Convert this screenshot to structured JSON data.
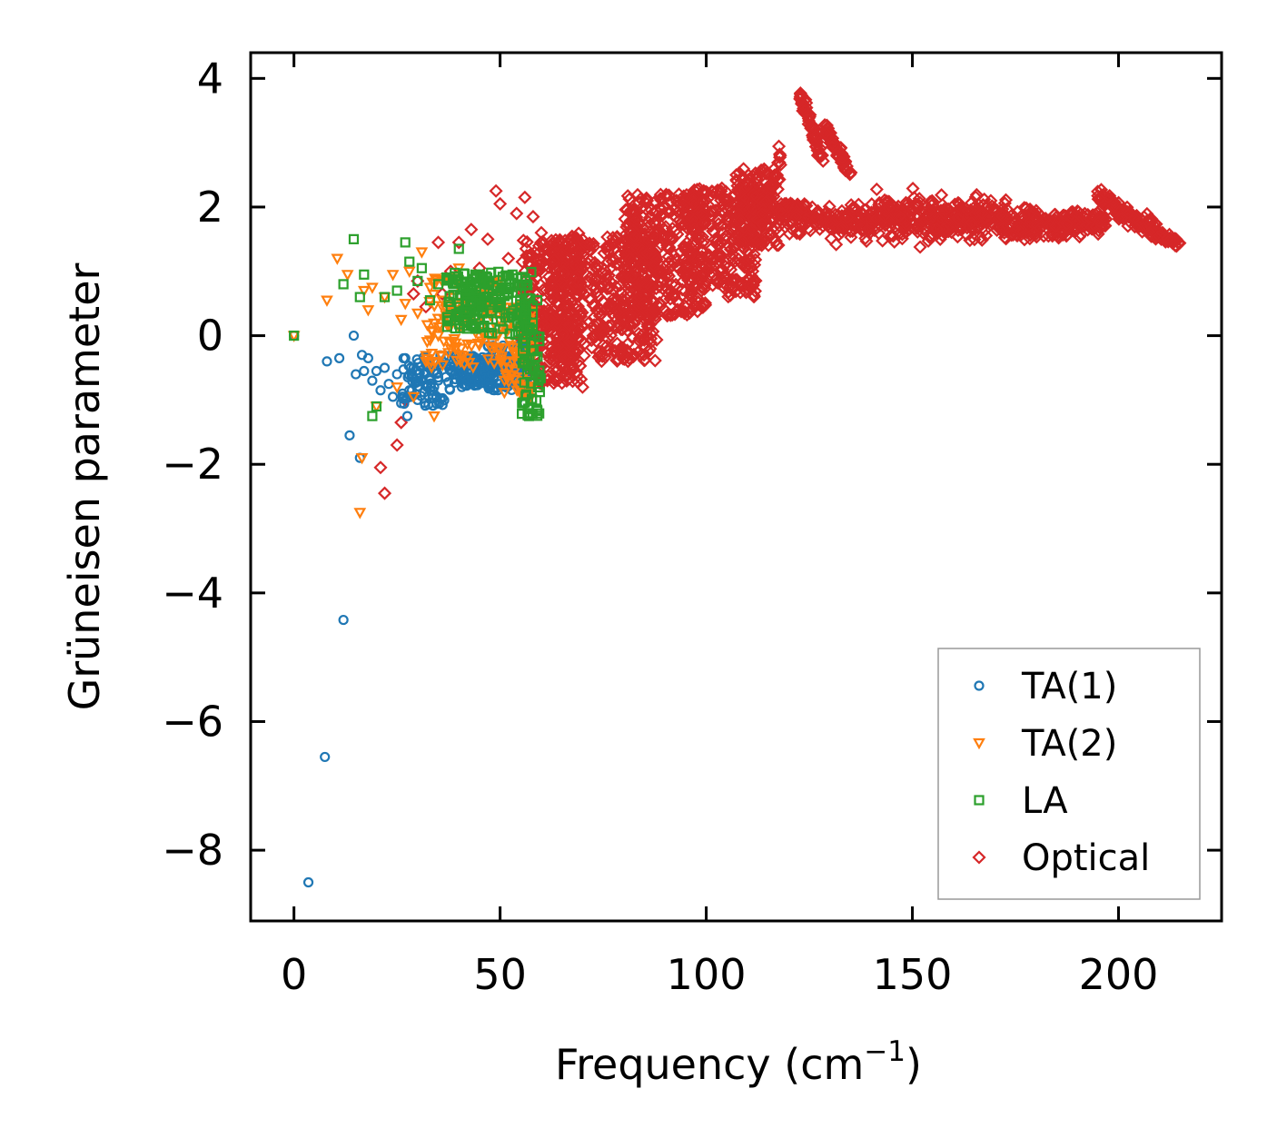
{
  "chart_data": {
    "type": "scatter",
    "title": "",
    "xlabel": "Frequency (cm",
    "xlabel_sup": "−1",
    "xlabel_tail": ")",
    "ylabel": "Grüneisen parameter",
    "xlim": [
      -10.5,
      225
    ],
    "ylim": [
      -9.1,
      4.4
    ],
    "xticks": [
      0,
      50,
      100,
      150,
      200
    ],
    "xtick_labels": [
      "0",
      "50",
      "100",
      "150",
      "200"
    ],
    "yticks": [
      4,
      2,
      0,
      -2,
      -4,
      -6,
      -8
    ],
    "ytick_labels": [
      "4",
      "2",
      "0",
      "−2",
      "−4",
      "−6",
      "−8"
    ],
    "grid": false,
    "legend_position": "bottom-right",
    "series": [
      {
        "name": "TA(1)",
        "marker": "circle",
        "color": "#1f77b4",
        "points": [
          [
            0,
            0
          ],
          [
            3.5,
            -8.5
          ],
          [
            7.5,
            -6.55
          ],
          [
            12,
            -4.42
          ],
          [
            8,
            -0.4
          ],
          [
            11,
            -0.35
          ],
          [
            13.5,
            -1.55
          ],
          [
            14.5,
            0
          ],
          [
            15,
            -0.6
          ],
          [
            16,
            -1.9
          ],
          [
            16.5,
            -0.3
          ],
          [
            17,
            -0.55
          ],
          [
            18,
            -0.35
          ],
          [
            19,
            -0.7
          ],
          [
            20,
            -0.55
          ],
          [
            21,
            -0.85
          ],
          [
            22,
            -0.5
          ],
          [
            23,
            -0.75
          ],
          [
            24,
            -0.95
          ],
          [
            25,
            -0.6
          ],
          [
            26,
            -1.05
          ],
          [
            27,
            -0.35
          ],
          [
            27.5,
            -1.25
          ],
          [
            28,
            -0.85
          ],
          [
            29,
            -0.5
          ],
          [
            30,
            -1.0
          ],
          [
            31,
            -0.7
          ],
          [
            32,
            -0.45
          ],
          [
            33,
            -0.85
          ],
          [
            34,
            -0.55
          ],
          [
            35,
            -0.65
          ],
          [
            36,
            -0.4
          ],
          [
            38,
            -0.55
          ],
          [
            40,
            -0.6
          ],
          [
            42,
            -0.7
          ],
          [
            44,
            -0.45
          ],
          [
            46,
            -0.5
          ],
          [
            48,
            -0.6
          ],
          [
            50,
            -0.75
          ],
          [
            52,
            -0.5
          ],
          [
            54,
            -0.55
          ],
          [
            55,
            -0.85
          ],
          [
            56,
            -1.05
          ],
          [
            57,
            -0.4
          ]
        ],
        "clusters": [
          {
            "x": [
              26,
              38
            ],
            "y": [
              -1.1,
              -0.3
            ],
            "count": 80
          },
          {
            "x": [
              38,
              48
            ],
            "y": [
              -0.8,
              -0.3
            ],
            "count": 110
          },
          {
            "x": [
              47,
              57
            ],
            "y": [
              -0.85,
              -0.15
            ],
            "count": 100
          }
        ]
      },
      {
        "name": "TA(2)",
        "marker": "triangle_down",
        "color": "#ff7f0e",
        "points": [
          [
            0,
            0
          ],
          [
            8,
            0.55
          ],
          [
            10.5,
            1.2
          ],
          [
            13,
            0.95
          ],
          [
            16,
            -2.75
          ],
          [
            16.5,
            -1.9
          ],
          [
            17,
            0.7
          ],
          [
            18,
            0.4
          ],
          [
            19,
            0.75
          ],
          [
            20,
            -1.1
          ],
          [
            22,
            0.6
          ],
          [
            24,
            0.95
          ],
          [
            25,
            -0.8
          ],
          [
            26,
            0.25
          ],
          [
            27,
            0.5
          ],
          [
            28,
            1.0
          ],
          [
            29,
            -0.95
          ],
          [
            30,
            0.35
          ],
          [
            31,
            1.3
          ],
          [
            32,
            -0.4
          ],
          [
            33,
            0.75
          ],
          [
            34,
            -1.25
          ],
          [
            35,
            0.0
          ],
          [
            36,
            0.55
          ],
          [
            37,
            0.9
          ],
          [
            38,
            -0.2
          ],
          [
            39,
            0.4
          ],
          [
            40,
            1.05
          ],
          [
            41,
            0.15
          ],
          [
            42,
            -0.35
          ],
          [
            44,
            0.6
          ],
          [
            46,
            0.0
          ],
          [
            48,
            -0.2
          ],
          [
            50,
            0.4
          ],
          [
            52,
            0.1
          ],
          [
            54,
            -0.3
          ],
          [
            56,
            -0.8
          ],
          [
            57,
            -1.0
          ]
        ],
        "clusters": [
          {
            "x": [
              32,
              50
            ],
            "y": [
              -0.5,
              0.9
            ],
            "count": 120
          },
          {
            "x": [
              50,
              58
            ],
            "y": [
              -1.0,
              0.5
            ],
            "count": 80
          }
        ]
      },
      {
        "name": "LA",
        "marker": "square",
        "color": "#2ca02c",
        "points": [
          [
            0,
            0
          ],
          [
            12,
            0.8
          ],
          [
            14.5,
            1.5
          ],
          [
            16,
            0.6
          ],
          [
            17,
            0.95
          ],
          [
            19,
            -1.25
          ],
          [
            20,
            -1.1
          ],
          [
            22,
            0.6
          ],
          [
            25,
            0.7
          ],
          [
            27,
            1.45
          ],
          [
            28,
            1.15
          ],
          [
            30,
            0.85
          ],
          [
            31,
            1.05
          ],
          [
            33,
            0.55
          ],
          [
            35,
            0.8
          ],
          [
            37,
            0.9
          ],
          [
            38,
            0.45
          ],
          [
            40,
            1.35
          ],
          [
            41,
            0.75
          ],
          [
            42,
            0.2
          ],
          [
            44,
            0.95
          ],
          [
            46,
            0.6
          ],
          [
            48,
            0.35
          ],
          [
            50,
            0.5
          ],
          [
            52,
            0.75
          ],
          [
            53,
            0.95
          ],
          [
            55,
            0.35
          ],
          [
            57,
            -1.25
          ],
          [
            58,
            -0.5
          ],
          [
            59,
            0.55
          ]
        ],
        "clusters": [
          {
            "x": [
              37,
              47
            ],
            "y": [
              0.1,
              1.0
            ],
            "count": 110
          },
          {
            "x": [
              47,
              58
            ],
            "y": [
              0.0,
              1.0
            ],
            "count": 90
          },
          {
            "x": [
              55,
              60
            ],
            "y": [
              -1.25,
              0.0
            ],
            "count": 50
          }
        ]
      },
      {
        "name": "Optical",
        "marker": "diamond",
        "color": "#d62728",
        "points": [
          [
            21,
            -2.05
          ],
          [
            22,
            -2.45
          ],
          [
            25,
            -1.7
          ],
          [
            26,
            -1.35
          ],
          [
            27,
            -1.0
          ],
          [
            29,
            0.65
          ],
          [
            30,
            0.85
          ],
          [
            32,
            0.45
          ],
          [
            35,
            1.45
          ],
          [
            36,
            0.65
          ],
          [
            38,
            1.0
          ],
          [
            40,
            1.45
          ],
          [
            43,
            1.65
          ],
          [
            45,
            1.05
          ],
          [
            47,
            1.5
          ],
          [
            49,
            2.25
          ],
          [
            50,
            2.05
          ],
          [
            52,
            1.2
          ],
          [
            54,
            1.9
          ],
          [
            56,
            2.15
          ],
          [
            58,
            1.85
          ],
          [
            60,
            1.6
          ],
          [
            70,
            -0.8
          ],
          [
            75,
            -0.15
          ],
          [
            80,
            0.3
          ]
        ],
        "clusters": [
          {
            "x": [
              55,
              70
            ],
            "y": [
              -0.75,
              1.5
            ],
            "count": 330
          },
          {
            "x": [
              62,
              88
            ],
            "y": [
              -0.4,
              1.6
            ],
            "count": 420
          },
          {
            "x": [
              80,
              100
            ],
            "y": [
              0.3,
              2.2
            ],
            "count": 380
          },
          {
            "x": [
              95,
              112
            ],
            "y": [
              0.6,
              2.3
            ],
            "count": 260
          },
          {
            "x": [
              107,
              118
            ],
            "y": [
              1.4,
              2.6
            ],
            "count": 150
          }
        ],
        "trails": [
          {
            "from": [
              112,
              1.6
            ],
            "to": [
              118,
              2.7
            ],
            "width": 0.35,
            "count": 60
          },
          {
            "from": [
              118,
              2.0
            ],
            "to": [
              122,
              1.9
            ],
            "width": 0.25,
            "count": 40
          },
          {
            "from": [
              123,
              3.75
            ],
            "to": [
              128,
              2.75
            ],
            "width": 0.2,
            "count": 60
          },
          {
            "from": [
              129,
              3.2
            ],
            "to": [
              135,
              2.5
            ],
            "width": 0.2,
            "count": 60
          },
          {
            "from": [
              120,
              1.85
            ],
            "to": [
              140,
              1.75
            ],
            "width": 0.4,
            "count": 160
          },
          {
            "from": [
              140,
              1.85
            ],
            "to": [
              160,
              1.8
            ],
            "width": 0.55,
            "count": 200
          },
          {
            "from": [
              160,
              1.85
            ],
            "to": [
              180,
              1.75
            ],
            "width": 0.5,
            "count": 200
          },
          {
            "from": [
              180,
              1.7
            ],
            "to": [
              197,
              1.8
            ],
            "width": 0.35,
            "count": 140
          },
          {
            "from": [
              195,
              2.15
            ],
            "to": [
              210,
              1.6
            ],
            "width": 0.25,
            "count": 110
          },
          {
            "from": [
              208,
              1.6
            ],
            "to": [
              215,
              1.45
            ],
            "width": 0.12,
            "count": 40
          }
        ]
      }
    ]
  }
}
